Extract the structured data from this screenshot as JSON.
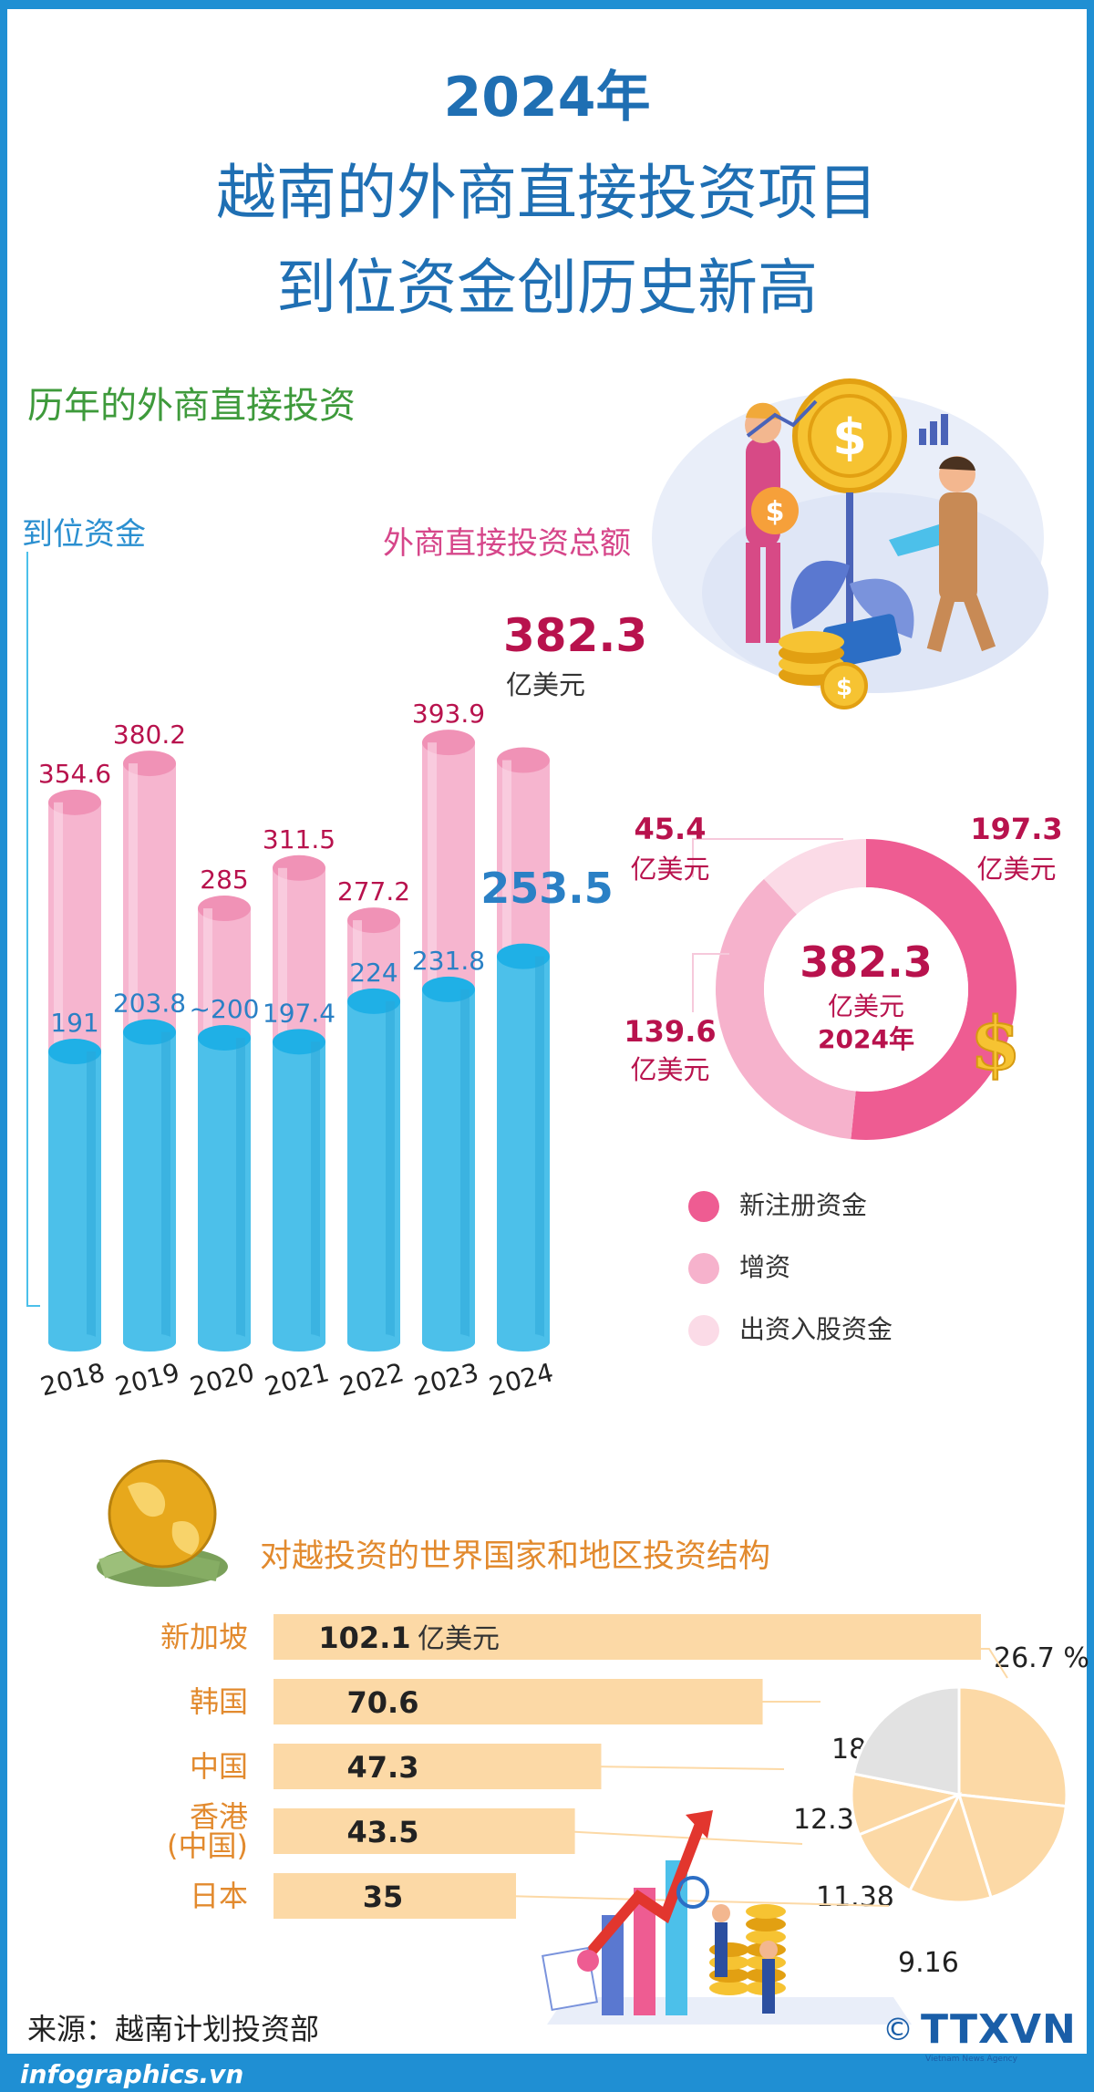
{
  "title": {
    "line1": "2024年",
    "line2": "越南的外商直接投资项目",
    "line3": "到位资金创历史新高"
  },
  "section1": {
    "heading": "历年的外商直接投资",
    "label_disbursed": "到位资金",
    "label_total": "外商直接投资总额",
    "total_2024": "382.3",
    "total_2024_unit": "亿美元",
    "disbursed_2024": "253.5"
  },
  "donut": {
    "center_value": "382.3",
    "center_unit": "亿美元",
    "center_year": "2024年",
    "slices": [
      {
        "label": "新注册资金",
        "value": 197.3,
        "value_text": "197.3",
        "unit": "亿美元",
        "color": "#ee5c92"
      },
      {
        "label": "增资",
        "value": 139.6,
        "value_text": "139.6",
        "unit": "亿美元",
        "color": "#f6b2cc"
      },
      {
        "label": "出资入股资金",
        "value": 45.4,
        "value_text": "45.4",
        "unit": "亿美元",
        "color": "#fbdbe7"
      }
    ]
  },
  "section2": {
    "heading": "对越投资的世界国家和地区投资结构"
  },
  "source": "来源：越南计划投资部",
  "footer": {
    "site": "infographics.vn",
    "logo": "TTXVN",
    "logo_sub": "Vietnam News Agency",
    "copyright": "©"
  },
  "chart_data": [
    {
      "type": "bar",
      "categories": [
        "2018",
        "2019",
        "2020",
        "2021",
        "2022",
        "2023",
        "2024"
      ],
      "series": [
        {
          "name": "外商直接投资总额",
          "values": [
            354.6,
            380.2,
            285,
            311.5,
            277.2,
            393.9,
            382.3
          ],
          "labels": [
            "354.6",
            "380.2",
            "285",
            "311.5",
            "277.2",
            "393.9",
            ""
          ]
        },
        {
          "name": "到位资金",
          "values": [
            191,
            203.8,
            200,
            197.4,
            224,
            231.8,
            253.5
          ],
          "labels": [
            "191",
            "203.8",
            "~200",
            "197.4",
            "224",
            "231.8",
            ""
          ]
        }
      ],
      "colors": {
        "total": "#f6b5cf",
        "disbursed": "#4cc0ea"
      },
      "ylim": [
        0,
        400
      ]
    },
    {
      "type": "pie",
      "labels": [
        "新注册资金",
        "增资",
        "出资入股资金"
      ],
      "values": [
        197.3,
        139.6,
        45.4
      ],
      "colors": [
        "#ee5c92",
        "#f6b2cc",
        "#fbdbe7"
      ]
    },
    {
      "type": "bar",
      "orientation": "horizontal",
      "categories": [
        "新加坡",
        "韩国",
        "中国",
        "香港(中国)",
        "日本"
      ],
      "category_lines": [
        [
          "新加坡"
        ],
        [
          "韩国"
        ],
        [
          "中国"
        ],
        [
          "香港",
          "(中国)"
        ],
        [
          "日本"
        ]
      ],
      "values": [
        102.1,
        70.6,
        47.3,
        43.5,
        35
      ],
      "value_labels": [
        "102.1",
        "70.6",
        "47.3",
        "43.5",
        "35"
      ],
      "first_unit": "亿美元",
      "percentages": [
        "26.7 %",
        "18.5",
        "12.37",
        "11.38",
        "9.16"
      ],
      "pie_shares": [
        26.7,
        18.5,
        12.37,
        11.38,
        9.16
      ],
      "colors": {
        "bar": "#fcd9a6",
        "pie": "#fcd9a6",
        "pie_other": "#e2e2e2"
      }
    }
  ]
}
